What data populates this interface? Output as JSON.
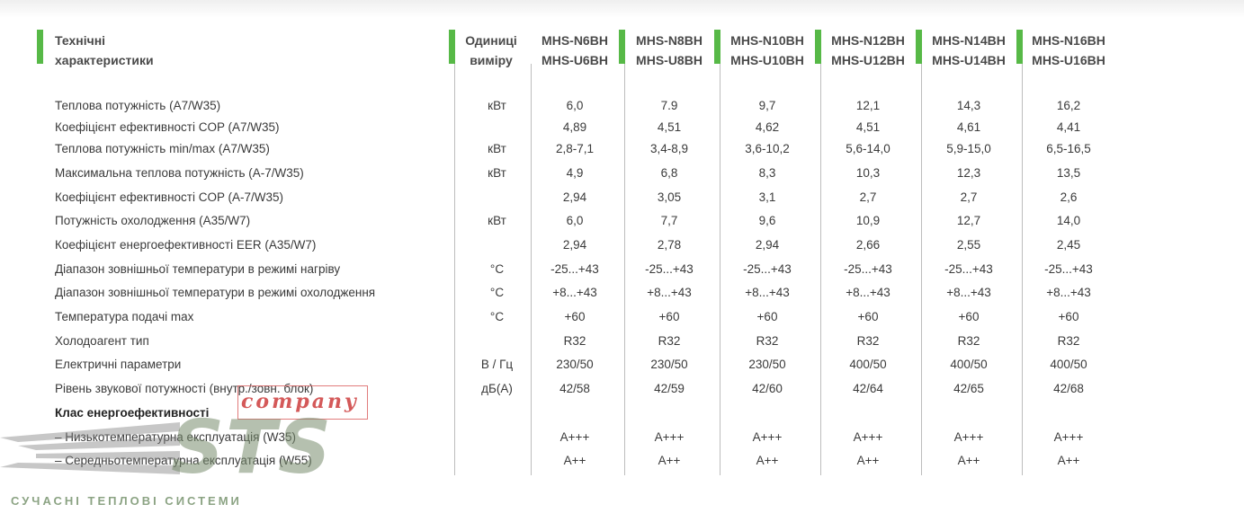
{
  "header": {
    "spec_line1": "Технічні",
    "spec_line2": "характеристики",
    "unit_line1": "Одиниці",
    "unit_line2": "виміру",
    "models": [
      {
        "l1": "MHS-N6BH",
        "l2": "MHS-U6BH"
      },
      {
        "l1": "MHS-N8BH",
        "l2": "MHS-U8BH"
      },
      {
        "l1": "MHS-N10BH",
        "l2": "MHS-U10BH"
      },
      {
        "l1": "MHS-N12BH",
        "l2": "MHS-U12BH"
      },
      {
        "l1": "MHS-N14BH",
        "l2": "MHS-U14BH"
      },
      {
        "l1": "MHS-N16BH",
        "l2": "MHS-U16BH"
      }
    ]
  },
  "rows": [
    {
      "label": "Теплова потужність (A7/W35)",
      "unit": "кВт",
      "values": [
        "6,0",
        "7.9",
        "9,7",
        "12,1",
        "14,3",
        "16,2"
      ]
    },
    {
      "label": "Коефіцієнт ефективності COP (A7/W35)",
      "unit": "",
      "values": [
        "4,89",
        "4,51",
        "4,62",
        "4,51",
        "4,61",
        "4,41"
      ]
    },
    {
      "label": "Теплова потужність min/max (A7/W35)",
      "unit": "кВт",
      "values": [
        "2,8-7,1",
        "3,4-8,9",
        "3,6-10,2",
        "5,6-14,0",
        "5,9-15,0",
        "6,5-16,5"
      ]
    },
    {
      "label": "Максимальна теплова потужність (A-7/W35)",
      "unit": "кВт",
      "values": [
        "4,9",
        "6,8",
        "8,3",
        "10,3",
        "12,3",
        "13,5"
      ]
    },
    {
      "label": "Коефіцієнт ефективності COP (A-7/W35)",
      "unit": "",
      "values": [
        "2,94",
        "3,05",
        "3,1",
        "2,7",
        "2,7",
        "2,6"
      ]
    },
    {
      "label": "Потужність охолодження (A35/W7)",
      "unit": "кВт",
      "values": [
        "6,0",
        "7,7",
        "9,6",
        "10,9",
        "12,7",
        "14,0"
      ]
    },
    {
      "label": "Коефіцієнт енергоефективності EER (A35/W7)",
      "unit": "",
      "values": [
        "2,94",
        "2,78",
        "2,94",
        "2,66",
        "2,55",
        "2,45"
      ]
    },
    {
      "label": "Діапазон зовнішньої температури в режимі нагріву",
      "unit": "°C",
      "values": [
        "-25...+43",
        "-25...+43",
        "-25...+43",
        "-25...+43",
        "-25...+43",
        "-25...+43"
      ]
    },
    {
      "label": "Діапазон зовнішньої температури в режимі охолодження",
      "unit": "°C",
      "values": [
        "+8...+43",
        "+8...+43",
        "+8...+43",
        "+8...+43",
        "+8...+43",
        "+8...+43"
      ]
    },
    {
      "label": "Температура подачі max",
      "unit": "°C",
      "values": [
        "+60",
        "+60",
        "+60",
        "+60",
        "+60",
        "+60"
      ]
    },
    {
      "label": "Холодоагент тип",
      "unit": "",
      "values": [
        "R32",
        "R32",
        "R32",
        "R32",
        "R32",
        "R32"
      ]
    },
    {
      "label": "Електричні параметри",
      "unit": "В / Гц",
      "values": [
        "230/50",
        "230/50",
        "230/50",
        "400/50",
        "400/50",
        "400/50"
      ]
    },
    {
      "label": "Рівень звукової потужності (внутр./зовн. блок)",
      "unit": "дБ(А)",
      "values": [
        "42/58",
        "42/59",
        "42/60",
        "42/64",
        "42/65",
        "42/68"
      ]
    },
    {
      "label": "Клас енергоефективності",
      "unit": "",
      "values": [
        "",
        "",
        "",
        "",
        "",
        ""
      ],
      "bold": true
    },
    {
      "label": "– Низькотемпературна експлуатація (W35)",
      "unit": "",
      "values": [
        "A+++",
        "A+++",
        "A+++",
        "A+++",
        "A+++",
        "A+++"
      ]
    },
    {
      "label": "– Середньотемпературна експлуатація (W55)",
      "unit": "",
      "values": [
        "A++",
        "A++",
        "A++",
        "A++",
        "A++",
        "A++"
      ]
    }
  ],
  "watermark": {
    "logo_text": "STS",
    "company": "company",
    "tagline": "СУЧАСНІ ТЕПЛОВІ СИСТЕМИ"
  },
  "colors": {
    "accent_green": "#57b947",
    "divider": "#bdbdbd",
    "text": "#3a3a3a"
  }
}
